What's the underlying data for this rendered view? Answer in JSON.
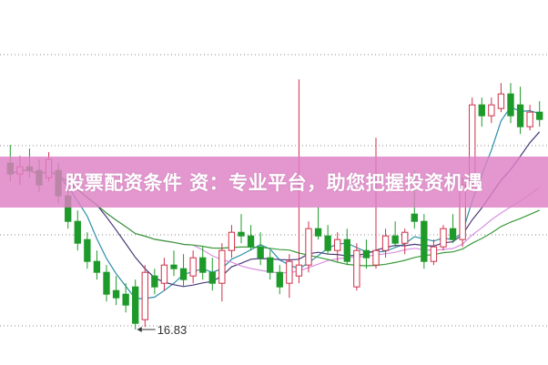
{
  "banner": {
    "text": "股票配资条件 资：专业平台，助您把握投资机遇",
    "color": "#de80c4"
  },
  "chart_data": {
    "type": "candlestick",
    "min_label": "16.83",
    "colors": {
      "up": "#d0304a",
      "down": "#1e9a2a",
      "ma_lines": [
        "#2a8fa8",
        "#4b3a7a",
        "#d890e0",
        "#3a9a3a"
      ]
    },
    "grid": "dotted-horizontal",
    "ohlc": [
      [
        21.4,
        21.9,
        20.9,
        21.1
      ],
      [
        21.1,
        21.6,
        20.8,
        21.3
      ],
      [
        21.3,
        21.8,
        21.0,
        21.2
      ],
      [
        21.2,
        21.5,
        20.6,
        20.8
      ],
      [
        21.0,
        21.7,
        20.9,
        21.5
      ],
      [
        21.2,
        21.4,
        20.3,
        20.5
      ],
      [
        20.5,
        20.8,
        19.6,
        19.8
      ],
      [
        19.8,
        20.1,
        19.0,
        19.2
      ],
      [
        19.3,
        19.5,
        18.5,
        18.7
      ],
      [
        18.7,
        19.0,
        18.2,
        18.4
      ],
      [
        18.4,
        18.6,
        17.6,
        17.8
      ],
      [
        17.9,
        18.3,
        17.5,
        17.7
      ],
      [
        17.8,
        18.1,
        17.3,
        17.5
      ],
      [
        18.0,
        18.2,
        16.83,
        17.0
      ],
      [
        17.1,
        18.6,
        16.9,
        18.4
      ],
      [
        18.3,
        18.5,
        17.8,
        18.0
      ],
      [
        18.1,
        18.8,
        17.9,
        18.6
      ],
      [
        18.6,
        19.0,
        18.3,
        18.5
      ],
      [
        18.5,
        18.9,
        18.0,
        18.2
      ],
      [
        18.3,
        19.0,
        18.1,
        18.8
      ],
      [
        18.8,
        19.1,
        18.2,
        18.4
      ],
      [
        18.4,
        18.8,
        17.9,
        18.1
      ],
      [
        18.1,
        19.2,
        17.6,
        19.0
      ],
      [
        19.0,
        19.7,
        18.8,
        19.5
      ],
      [
        19.5,
        20.0,
        19.2,
        19.4
      ],
      [
        19.4,
        19.7,
        19.0,
        19.1
      ],
      [
        19.1,
        19.5,
        18.6,
        18.8
      ],
      [
        18.8,
        19.0,
        18.2,
        18.4
      ],
      [
        18.4,
        18.6,
        17.8,
        18.0
      ],
      [
        18.1,
        18.9,
        17.7,
        18.7
      ],
      [
        18.3,
        23.7,
        18.1,
        18.6
      ],
      [
        18.6,
        19.8,
        18.4,
        19.6
      ],
      [
        19.6,
        20.2,
        19.3,
        19.4
      ],
      [
        19.4,
        19.7,
        18.9,
        19.0
      ],
      [
        19.0,
        19.5,
        18.7,
        19.3
      ],
      [
        19.3,
        19.6,
        18.6,
        18.7
      ],
      [
        18.0,
        19.2,
        17.9,
        19.0
      ],
      [
        19.0,
        19.3,
        18.5,
        18.8
      ],
      [
        18.6,
        22.1,
        18.5,
        19.0
      ],
      [
        19.0,
        19.6,
        18.8,
        19.4
      ],
      [
        19.4,
        19.8,
        19.1,
        19.2
      ],
      [
        19.2,
        19.6,
        18.9,
        19.5
      ],
      [
        20.0,
        21.2,
        19.6,
        19.8
      ],
      [
        19.8,
        20.0,
        18.5,
        18.7
      ],
      [
        18.7,
        19.3,
        18.6,
        19.1
      ],
      [
        19.1,
        19.7,
        19.0,
        19.6
      ],
      [
        19.6,
        20.0,
        19.2,
        19.3
      ],
      [
        19.3,
        21.0,
        19.1,
        20.8
      ],
      [
        20.8,
        23.2,
        20.6,
        23.0
      ],
      [
        23.0,
        23.2,
        22.4,
        22.7
      ],
      [
        22.7,
        23.2,
        22.5,
        23.0
      ],
      [
        22.9,
        23.6,
        22.8,
        23.3
      ],
      [
        23.3,
        23.6,
        22.5,
        22.7
      ],
      [
        23.0,
        23.5,
        22.2,
        22.4
      ],
      [
        22.4,
        23.0,
        22.3,
        22.8
      ],
      [
        22.8,
        23.1,
        22.4,
        22.6
      ]
    ],
    "ma_periods": [
      5,
      10,
      20,
      30
    ]
  }
}
